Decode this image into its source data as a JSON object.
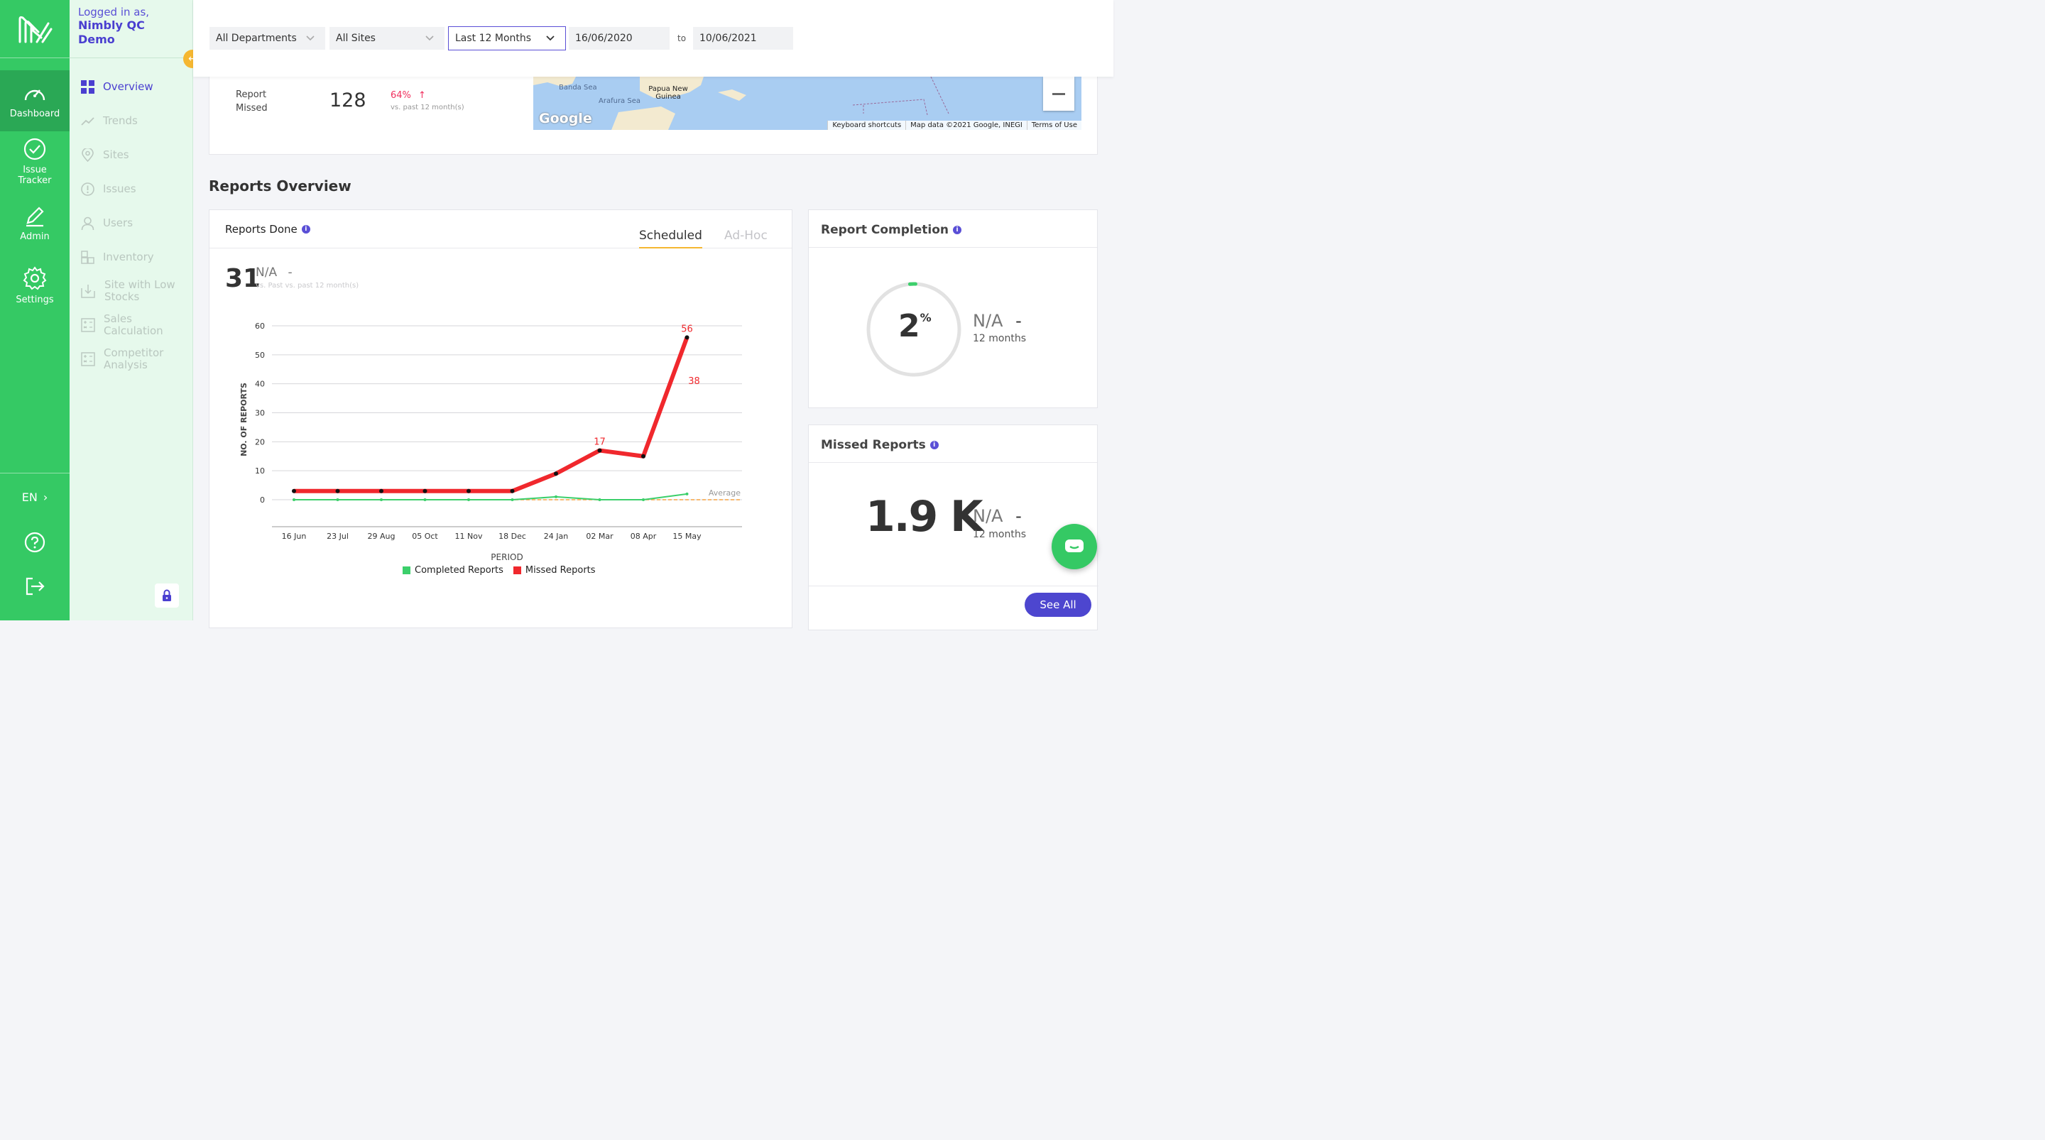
{
  "user": {
    "logged_in_label": "Logged in as,",
    "name": "Nimbly QC Demo"
  },
  "rail": {
    "items": [
      {
        "label": "Dashboard",
        "icon": "speedometer-icon"
      },
      {
        "label": "Issue Tracker",
        "icon": "check-circle-icon"
      },
      {
        "label": "Admin",
        "icon": "pencil-icon"
      },
      {
        "label": "Settings",
        "icon": "gear-icon"
      }
    ],
    "lang": "EN"
  },
  "subnav": {
    "items": [
      {
        "label": "Overview"
      },
      {
        "label": "Trends"
      },
      {
        "label": "Sites"
      },
      {
        "label": "Issues"
      },
      {
        "label": "Users"
      },
      {
        "label": "Inventory"
      },
      {
        "label": "Site with Low Stocks"
      },
      {
        "label": "Sales Calculation"
      },
      {
        "label": "Competitor Analysis"
      }
    ]
  },
  "filters": {
    "department": "All Departments",
    "sites": "All Sites",
    "period": "Last 12 Months",
    "date_from": "16/06/2020",
    "to_label": "to",
    "date_to": "10/06/2021"
  },
  "report_missed": {
    "label": "Report Missed",
    "value": "128",
    "change": "64%",
    "change_sub": "vs. past 12 month(s)"
  },
  "map": {
    "labels": [
      "Banda Sea",
      "Arafura Sea",
      "Papua New Guinea"
    ],
    "logo": "Google",
    "footer": [
      "Keyboard shortcuts",
      "Map data ©2021 Google, INEGI",
      "Terms of Use"
    ]
  },
  "section_title": "Reports Overview",
  "reports_done": {
    "title": "Reports Done",
    "tabs": [
      "Scheduled",
      "Ad-Hoc"
    ],
    "value": "31",
    "na": "N/A",
    "dash": "-",
    "sub": "vs. Past vs. past 12 month(s)"
  },
  "chart_data": {
    "type": "line",
    "xlabel": "PERIOD",
    "ylabel": "NO. OF REPORTS",
    "ylim": [
      0,
      60
    ],
    "yticks": [
      0,
      10,
      20,
      30,
      40,
      50,
      60
    ],
    "xticks": [
      "16 Jun",
      "23 Jul",
      "29 Aug",
      "05 Oct",
      "11 Nov",
      "18 Dec",
      "24 Jan",
      "02 Mar",
      "08 Apr",
      "15 May"
    ],
    "average_label": "Average",
    "series": [
      {
        "name": "Completed Reports",
        "color": "#3ccf6b",
        "x": [
          "16 Jun",
          "23 Jul",
          "29 Aug",
          "05 Oct",
          "11 Nov",
          "18 Dec",
          "24 Jan",
          "02 Mar",
          "08 Apr",
          "15 May"
        ],
        "values": [
          0,
          0,
          0,
          0,
          0,
          0,
          1,
          0,
          0,
          2
        ]
      },
      {
        "name": "Missed Reports",
        "color": "#f0282d",
        "x": [
          "16 Jun",
          "23 Jul",
          "29 Aug",
          "05 Oct",
          "11 Nov",
          "18 Dec",
          "24 Jan",
          "02 Mar",
          "08 Apr",
          "15 May"
        ],
        "values": [
          3,
          3,
          3,
          3,
          3,
          3,
          9,
          17,
          15,
          56
        ]
      }
    ],
    "data_labels": [
      {
        "value": "17"
      },
      {
        "value": "56"
      },
      {
        "value": "38"
      }
    ]
  },
  "report_completion": {
    "title": "Report Completion",
    "value": "2",
    "unit": "%",
    "na": "N/A",
    "dash": "-",
    "period": "12 months",
    "fraction": 0.02
  },
  "missed_reports": {
    "title": "Missed Reports",
    "value": "1.9 K",
    "na": "N/A",
    "dash": "-",
    "period": "12 months",
    "see_all": "See All"
  }
}
